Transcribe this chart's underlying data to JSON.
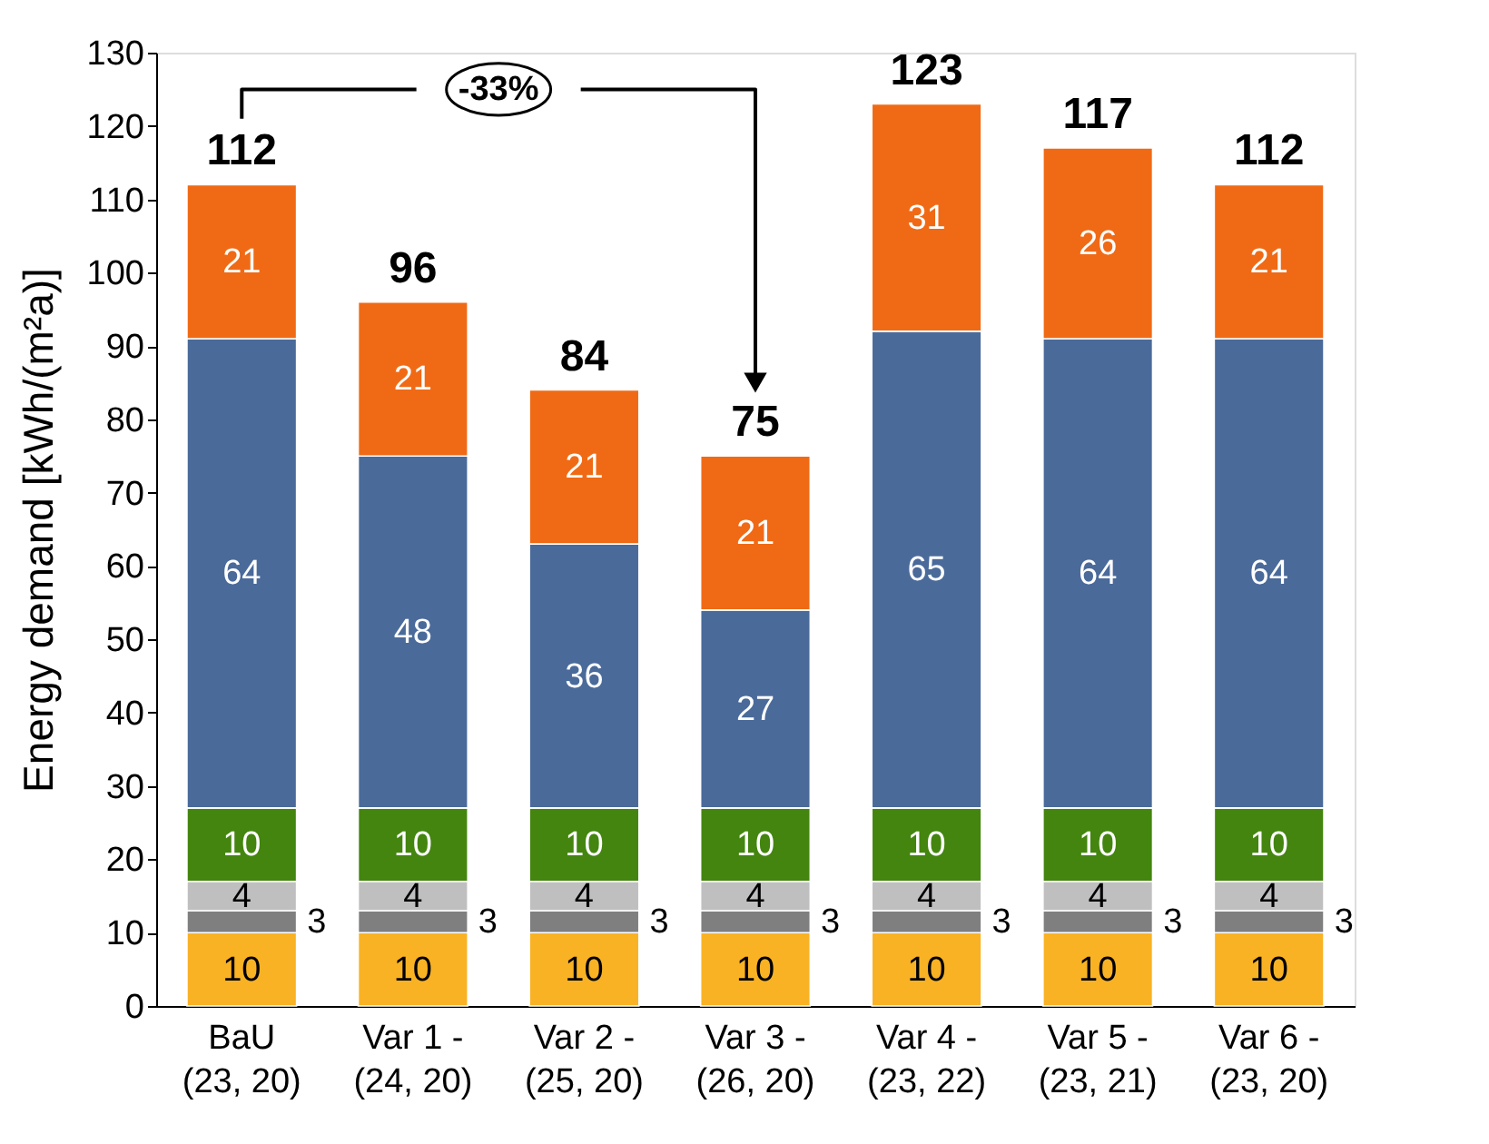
{
  "chart_data": {
    "type": "bar",
    "stacked": true,
    "ylabel": "Energy demand [kWh/(m²a)]",
    "categories": [
      "BaU\n(23, 20)",
      "Var 1 -\n(24, 20)",
      "Var 2 -\n(25, 20)",
      "Var 3 -\n(26, 20)",
      "Var 4 -\n(23, 22)",
      "Var 5 -\n(23, 21)",
      "Var 6 -\n(23, 20)"
    ],
    "series": [
      {
        "color": "#f9b224",
        "values": [
          10,
          10,
          10,
          10,
          10,
          10,
          10
        ]
      },
      {
        "color": "#7f7f7f",
        "values": [
          3,
          3,
          3,
          3,
          3,
          3,
          3
        ]
      },
      {
        "color": "#bfbfbf",
        "values": [
          4,
          4,
          4,
          4,
          4,
          4,
          4
        ]
      },
      {
        "color": "#43850f",
        "values": [
          10,
          10,
          10,
          10,
          10,
          10,
          10
        ]
      },
      {
        "color": "#4a6a9a",
        "values": [
          64,
          48,
          36,
          27,
          65,
          64,
          64
        ]
      },
      {
        "color": "#f06a15",
        "values": [
          21,
          21,
          21,
          21,
          31,
          26,
          21
        ]
      }
    ],
    "totals": [
      "112",
      "96",
      "84",
      "75",
      "123",
      "117",
      "112"
    ],
    "data_labels": true,
    "annotations": [
      "-33%"
    ],
    "ylim": [
      0,
      130
    ],
    "yticks": [
      0,
      10,
      20,
      30,
      40,
      50,
      60,
      70,
      80,
      90,
      100,
      110,
      120,
      130
    ],
    "grid": false
  }
}
